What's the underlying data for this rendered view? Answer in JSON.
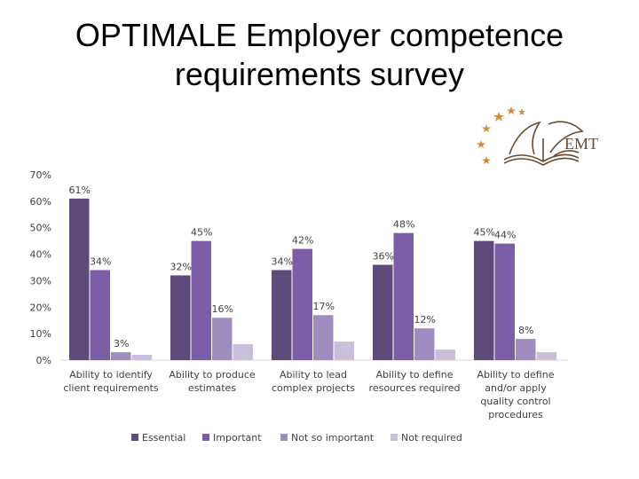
{
  "slide": {
    "title_line1": "OPTIMALE Employer competence",
    "title_line2": "requirements survey",
    "logo_text": "EMT"
  },
  "colors": {
    "essential": "#5f4b7b",
    "important": "#7b5ea7",
    "not_so_important": "#a08dc0",
    "not_required": "#c9bfdb",
    "logo_gold": "#d08a3a",
    "logo_brown": "#6b4a2b"
  },
  "chart_data": {
    "type": "bar",
    "title": "",
    "xlabel": "",
    "ylabel": "",
    "ylim": [
      0,
      70
    ],
    "yticks": [
      "0%",
      "10%",
      "20%",
      "30%",
      "40%",
      "50%",
      "60%",
      "70%"
    ],
    "categories": [
      [
        "Ability to identify",
        "client requirements"
      ],
      [
        "Ability to produce",
        "estimates"
      ],
      [
        "Ability to lead",
        "complex projects"
      ],
      [
        "Ability to define",
        "resources required"
      ],
      [
        "Ability to define",
        "and/or apply",
        "quality control",
        "procedures"
      ]
    ],
    "series": [
      {
        "name": "Essential",
        "values": [
          61,
          32,
          34,
          36,
          45
        ],
        "labels": [
          "61%",
          "32%",
          "34%",
          "36%",
          "45%"
        ]
      },
      {
        "name": "Important",
        "values": [
          34,
          45,
          42,
          48,
          44
        ],
        "labels": [
          "34%",
          "45%",
          "42%",
          "48%",
          "44%"
        ]
      },
      {
        "name": "Not so important",
        "values": [
          3,
          16,
          17,
          12,
          8
        ],
        "labels": [
          "3%",
          "16%",
          "17%",
          "12%",
          "8%"
        ]
      },
      {
        "name": "Not required",
        "values": [
          2,
          6,
          7,
          4,
          3
        ],
        "labels": [
          "",
          "",
          "",
          "",
          ""
        ]
      }
    ],
    "legend": "bottom",
    "grid": false
  }
}
